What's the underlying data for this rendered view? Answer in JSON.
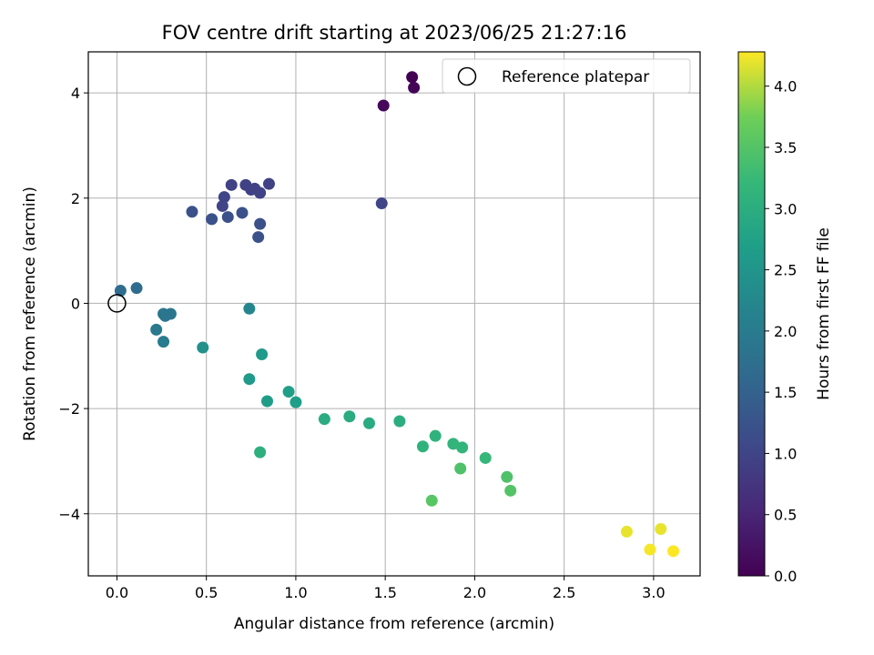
{
  "chart_data": {
    "type": "scatter",
    "title": "FOV centre drift starting at 2023/06/25 21:27:16",
    "xlabel": "Angular distance from reference (arcmin)",
    "ylabel": "Rotation from reference (arcmin)",
    "xlim": [
      -0.16,
      3.26
    ],
    "ylim": [
      -5.18,
      4.78
    ],
    "xticks": [
      0.0,
      0.5,
      1.0,
      1.5,
      2.0,
      2.5,
      3.0
    ],
    "xtick_labels": [
      "0.0",
      "0.5",
      "1.0",
      "1.5",
      "2.0",
      "2.5",
      "3.0"
    ],
    "yticks": [
      -4,
      -2,
      0,
      2,
      4
    ],
    "ytick_labels": [
      "−4",
      "−2",
      "0",
      "2",
      "4"
    ],
    "grid": true,
    "legend": {
      "placement": "top-right",
      "entries": [
        {
          "label": "Reference platepar",
          "marker": "open-circle"
        }
      ]
    },
    "reference_point": {
      "x": 0.0,
      "y": 0.0
    },
    "colorbar": {
      "label": "Hours from first FF file",
      "colormap": "viridis",
      "range": [
        0.0,
        4.28
      ],
      "ticks": [
        0.0,
        0.5,
        1.0,
        1.5,
        2.0,
        2.5,
        3.0,
        3.5,
        4.0
      ],
      "tick_labels": [
        "0.0",
        "0.5",
        "1.0",
        "1.5",
        "2.0",
        "2.5",
        "3.0",
        "3.5",
        "4.0"
      ]
    },
    "points": [
      {
        "x": 1.65,
        "y": 4.3,
        "hours": 0.0
      },
      {
        "x": 1.66,
        "y": 4.1,
        "hours": 0.05
      },
      {
        "x": 1.49,
        "y": 3.76,
        "hours": 0.1
      },
      {
        "x": 0.64,
        "y": 2.25,
        "hours": 0.95
      },
      {
        "x": 0.72,
        "y": 2.25,
        "hours": 0.95
      },
      {
        "x": 0.85,
        "y": 2.27,
        "hours": 0.95
      },
      {
        "x": 0.75,
        "y": 2.16,
        "hours": 0.95
      },
      {
        "x": 0.77,
        "y": 2.18,
        "hours": 0.95
      },
      {
        "x": 0.8,
        "y": 2.1,
        "hours": 0.95
      },
      {
        "x": 0.6,
        "y": 2.02,
        "hours": 1.0
      },
      {
        "x": 0.59,
        "y": 1.85,
        "hours": 1.0
      },
      {
        "x": 1.48,
        "y": 1.9,
        "hours": 1.0
      },
      {
        "x": 0.42,
        "y": 1.74,
        "hours": 1.2
      },
      {
        "x": 0.53,
        "y": 1.6,
        "hours": 1.2
      },
      {
        "x": 0.62,
        "y": 1.64,
        "hours": 1.2
      },
      {
        "x": 0.7,
        "y": 1.72,
        "hours": 1.2
      },
      {
        "x": 0.8,
        "y": 1.51,
        "hours": 1.2
      },
      {
        "x": 0.79,
        "y": 1.26,
        "hours": 1.2
      },
      {
        "x": 0.11,
        "y": 0.29,
        "hours": 1.7
      },
      {
        "x": 0.02,
        "y": 0.24,
        "hours": 1.7
      },
      {
        "x": 0.26,
        "y": -0.2,
        "hours": 1.9
      },
      {
        "x": 0.3,
        "y": -0.2,
        "hours": 1.9
      },
      {
        "x": 0.27,
        "y": -0.24,
        "hours": 1.9
      },
      {
        "x": 0.22,
        "y": -0.5,
        "hours": 1.95
      },
      {
        "x": 0.26,
        "y": -0.73,
        "hours": 2.0
      },
      {
        "x": 0.74,
        "y": -0.1,
        "hours": 2.2
      },
      {
        "x": 0.48,
        "y": -0.84,
        "hours": 2.4
      },
      {
        "x": 0.81,
        "y": -0.97,
        "hours": 2.6
      },
      {
        "x": 0.74,
        "y": -1.44,
        "hours": 2.6
      },
      {
        "x": 0.84,
        "y": -1.86,
        "hours": 2.65
      },
      {
        "x": 0.96,
        "y": -1.68,
        "hours": 2.7
      },
      {
        "x": 1.0,
        "y": -1.88,
        "hours": 2.7
      },
      {
        "x": 1.16,
        "y": -2.2,
        "hours": 2.95
      },
      {
        "x": 1.3,
        "y": -2.15,
        "hours": 2.95
      },
      {
        "x": 1.41,
        "y": -2.28,
        "hours": 2.95
      },
      {
        "x": 1.58,
        "y": -2.24,
        "hours": 3.0
      },
      {
        "x": 1.78,
        "y": -2.52,
        "hours": 3.1
      },
      {
        "x": 1.71,
        "y": -2.72,
        "hours": 3.1
      },
      {
        "x": 1.88,
        "y": -2.67,
        "hours": 3.15
      },
      {
        "x": 1.93,
        "y": -2.74,
        "hours": 3.15
      },
      {
        "x": 2.06,
        "y": -2.94,
        "hours": 3.2
      },
      {
        "x": 0.8,
        "y": -2.83,
        "hours": 3.05
      },
      {
        "x": 1.92,
        "y": -3.14,
        "hours": 3.45
      },
      {
        "x": 2.18,
        "y": -3.3,
        "hours": 3.45
      },
      {
        "x": 2.2,
        "y": -3.56,
        "hours": 3.5
      },
      {
        "x": 1.76,
        "y": -3.75,
        "hours": 3.55
      },
      {
        "x": 2.85,
        "y": -4.34,
        "hours": 4.2
      },
      {
        "x": 3.04,
        "y": -4.29,
        "hours": 4.2
      },
      {
        "x": 2.98,
        "y": -4.68,
        "hours": 4.25
      },
      {
        "x": 3.11,
        "y": -4.71,
        "hours": 4.28
      }
    ]
  }
}
